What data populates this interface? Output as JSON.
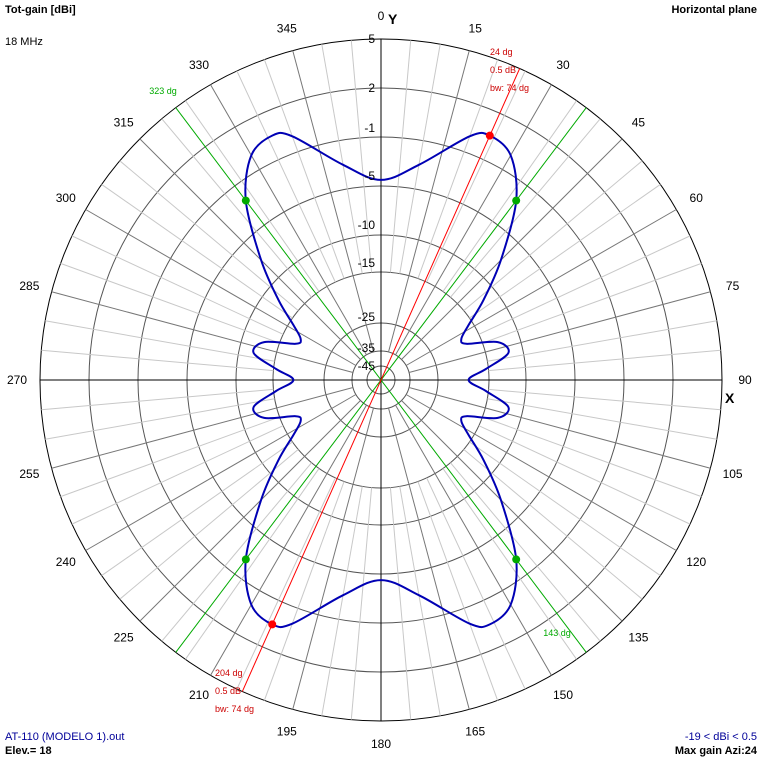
{
  "header": {
    "quantity": "Tot-gain [dBi]",
    "frequency": "18 MHz",
    "plane": "Horizontal plane"
  },
  "footer": {
    "file": "AT-110 (MODELO 1).out",
    "elevation": "Elev.= 18",
    "range": "-19 < dBi < 0.5",
    "max_gain": "Max gain Azi:24"
  },
  "chart_data": {
    "type": "polar-line",
    "title": "Tot-gain [dBi]",
    "axis_x_label": "X",
    "axis_y_label": "Y",
    "angle_ticks": [
      0,
      15,
      30,
      45,
      60,
      75,
      90,
      105,
      120,
      135,
      150,
      165,
      180,
      195,
      210,
      225,
      240,
      255,
      270,
      285,
      300,
      315,
      330,
      345
    ],
    "radial_ticks": [
      5,
      2,
      -1,
      -5,
      -10,
      -15,
      -25,
      -35,
      -45
    ],
    "radial_tick_labels": [
      "5",
      "2",
      "-1",
      "-5",
      "-10",
      "-15",
      "-25",
      "-35",
      "-45"
    ],
    "series": [
      {
        "color": "#0000b4",
        "points": [
          {
            "azimuth": 0,
            "gain": -4.5
          },
          {
            "azimuth": 10,
            "gain": -3.0
          },
          {
            "azimuth": 20,
            "gain": 0.0
          },
          {
            "azimuth": 24,
            "gain": 0.5
          },
          {
            "azimuth": 30,
            "gain": 0.0
          },
          {
            "azimuth": 37,
            "gain": -2.5
          },
          {
            "azimuth": 45,
            "gain": -7.5
          },
          {
            "azimuth": 52,
            "gain": -12.0
          },
          {
            "azimuth": 58,
            "gain": -16.0
          },
          {
            "azimuth": 63,
            "gain": -18.5
          },
          {
            "azimuth": 67,
            "gain": -18.0
          },
          {
            "azimuth": 72,
            "gain": -13.0
          },
          {
            "azimuth": 78,
            "gain": -12.0
          },
          {
            "azimuth": 84,
            "gain": -15.5
          },
          {
            "azimuth": 90,
            "gain": -19.0
          },
          {
            "azimuth": 96,
            "gain": -15.5
          },
          {
            "azimuth": 102,
            "gain": -12.0
          },
          {
            "azimuth": 108,
            "gain": -13.0
          },
          {
            "azimuth": 113,
            "gain": -18.0
          },
          {
            "azimuth": 117,
            "gain": -18.5
          },
          {
            "azimuth": 122,
            "gain": -16.0
          },
          {
            "azimuth": 128,
            "gain": -12.0
          },
          {
            "azimuth": 135,
            "gain": -7.5
          },
          {
            "azimuth": 143,
            "gain": -2.5
          },
          {
            "azimuth": 150,
            "gain": 0.0
          },
          {
            "azimuth": 156,
            "gain": 0.5
          },
          {
            "azimuth": 160,
            "gain": 0.0
          },
          {
            "azimuth": 170,
            "gain": -3.0
          },
          {
            "azimuth": 180,
            "gain": -4.5
          },
          {
            "azimuth": 190,
            "gain": -3.0
          },
          {
            "azimuth": 200,
            "gain": 0.0
          },
          {
            "azimuth": 204,
            "gain": 0.5
          },
          {
            "azimuth": 210,
            "gain": 0.0
          },
          {
            "azimuth": 217,
            "gain": -2.5
          },
          {
            "azimuth": 225,
            "gain": -7.5
          },
          {
            "azimuth": 232,
            "gain": -12.0
          },
          {
            "azimuth": 238,
            "gain": -16.0
          },
          {
            "azimuth": 243,
            "gain": -18.5
          },
          {
            "azimuth": 247,
            "gain": -18.0
          },
          {
            "azimuth": 252,
            "gain": -13.0
          },
          {
            "azimuth": 258,
            "gain": -12.0
          },
          {
            "azimuth": 264,
            "gain": -15.5
          },
          {
            "azimuth": 270,
            "gain": -19.0
          },
          {
            "azimuth": 276,
            "gain": -15.5
          },
          {
            "azimuth": 282,
            "gain": -12.0
          },
          {
            "azimuth": 288,
            "gain": -13.0
          },
          {
            "azimuth": 293,
            "gain": -18.0
          },
          {
            "azimuth": 297,
            "gain": -18.5
          },
          {
            "azimuth": 302,
            "gain": -16.0
          },
          {
            "azimuth": 308,
            "gain": -12.0
          },
          {
            "azimuth": 315,
            "gain": -7.5
          },
          {
            "azimuth": 323,
            "gain": -2.5
          },
          {
            "azimuth": 330,
            "gain": 0.0
          },
          {
            "azimuth": 336,
            "gain": 0.5
          },
          {
            "azimuth": 340,
            "gain": 0.0
          },
          {
            "azimuth": 350,
            "gain": -3.0
          }
        ]
      }
    ],
    "beam_markers": [
      {
        "label_azimuth": "24 dg",
        "label_level": "0.5 dB",
        "label_bw": "bw: 74 dg",
        "azimuth": 24,
        "gain": 0.5,
        "color": "#ff0000",
        "label_side": "upper"
      },
      {
        "label_azimuth": "204 dg",
        "label_level": "0.5 dB",
        "label_bw": "bw: 74 dg",
        "azimuth": 204,
        "gain": 0.5,
        "color": "#ff0000",
        "label_side": "lower"
      }
    ],
    "halfpower_markers": [
      {
        "label": "323 dg",
        "azimuth": 323,
        "gain": -2.5,
        "color": "#00aa00",
        "show_label": true
      },
      {
        "label": "143 dg",
        "azimuth": 143,
        "gain": -2.5,
        "color": "#00aa00",
        "show_label": true
      },
      {
        "azimuth": 37,
        "gain": -2.5,
        "color": "#00aa00",
        "show_label": false
      },
      {
        "azimuth": 217,
        "gain": -2.5,
        "color": "#00aa00",
        "show_label": false
      }
    ]
  }
}
